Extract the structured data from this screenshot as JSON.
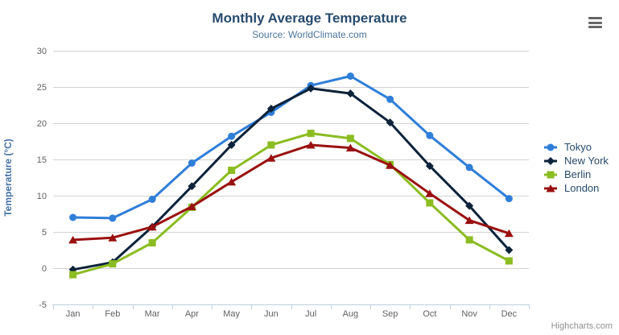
{
  "chart_data": {
    "type": "line",
    "title": "Monthly Average Temperature",
    "subtitle": "Source: WorldClimate.com",
    "xlabel": "",
    "ylabel": "Temperature (°C)",
    "categories": [
      "Jan",
      "Feb",
      "Mar",
      "Apr",
      "May",
      "Jun",
      "Jul",
      "Aug",
      "Sep",
      "Oct",
      "Nov",
      "Dec"
    ],
    "ylim": [
      -5,
      30
    ],
    "yticks": [
      -5,
      0,
      5,
      10,
      15,
      20,
      25,
      30
    ],
    "grid": true,
    "legend_position": "right",
    "series": [
      {
        "name": "Tokyo",
        "color": "#2f7ed8",
        "marker": "circle",
        "values": [
          7.0,
          6.9,
          9.5,
          14.5,
          18.2,
          21.5,
          25.2,
          26.5,
          23.3,
          18.3,
          13.9,
          9.6
        ]
      },
      {
        "name": "New York",
        "color": "#0d233a",
        "marker": "diamond",
        "values": [
          -0.2,
          0.8,
          5.7,
          11.3,
          17.0,
          22.0,
          24.8,
          24.1,
          20.1,
          14.1,
          8.6,
          2.5
        ]
      },
      {
        "name": "Berlin",
        "color": "#8bbc21",
        "marker": "square",
        "values": [
          -0.9,
          0.6,
          3.5,
          8.4,
          13.5,
          17.0,
          18.6,
          17.9,
          14.3,
          9.0,
          3.9,
          1.0
        ]
      },
      {
        "name": "London",
        "color": "#9a1010",
        "marker": "triangle",
        "values": [
          3.9,
          4.2,
          5.7,
          8.5,
          11.9,
          15.2,
          17.0,
          16.6,
          14.2,
          10.3,
          6.6,
          4.8
        ]
      }
    ]
  },
  "credits": "Highcharts.com",
  "menu": {
    "icon": "hamburger-menu-icon"
  }
}
